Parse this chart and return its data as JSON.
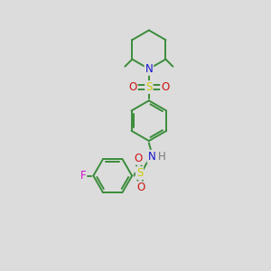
{
  "background_color": "#dcdcdc",
  "figsize": [
    3.0,
    3.0
  ],
  "dpi": 100,
  "atom_colors": {
    "C": "#3a8c3a",
    "N": "#1414cc",
    "S": "#cccc00",
    "O": "#cc1414",
    "F": "#cc14cc",
    "H": "#777777"
  },
  "bond_color": "#3a8c3a",
  "bond_width": 1.4,
  "font_size_atoms": 8.5
}
